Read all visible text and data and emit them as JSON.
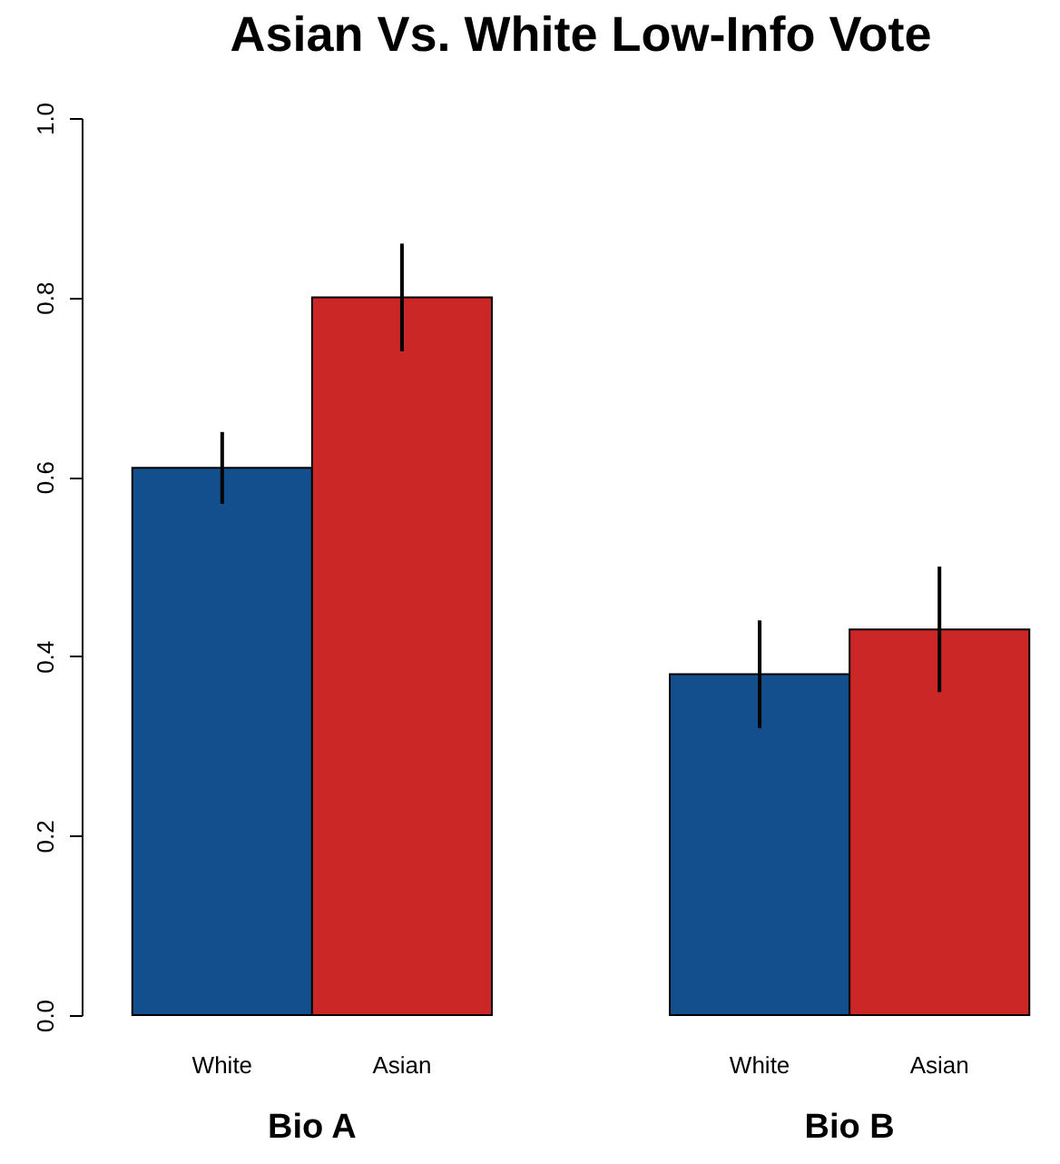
{
  "chart_data": {
    "type": "bar",
    "title": "Asian Vs. White Low-Info Vote",
    "categories": [
      "Bio A",
      "Bio B"
    ],
    "series": [
      {
        "name": "White",
        "color": "#134f8c",
        "values": [
          0.61,
          0.38
        ],
        "errors": [
          [
            0.57,
            0.65
          ],
          [
            0.32,
            0.44
          ]
        ]
      },
      {
        "name": "Asian",
        "color": "#cc2727",
        "values": [
          0.8,
          0.43
        ],
        "errors": [
          [
            0.74,
            0.86
          ],
          [
            0.36,
            0.5
          ]
        ]
      }
    ],
    "ylim": [
      0,
      1
    ],
    "yticks": [
      {
        "value": 0,
        "label": "0.0"
      },
      0.2,
      0.4,
      0.6,
      0.8,
      {
        "value": 1,
        "label": "1.0"
      }
    ],
    "grid": false,
    "legend": false
  }
}
